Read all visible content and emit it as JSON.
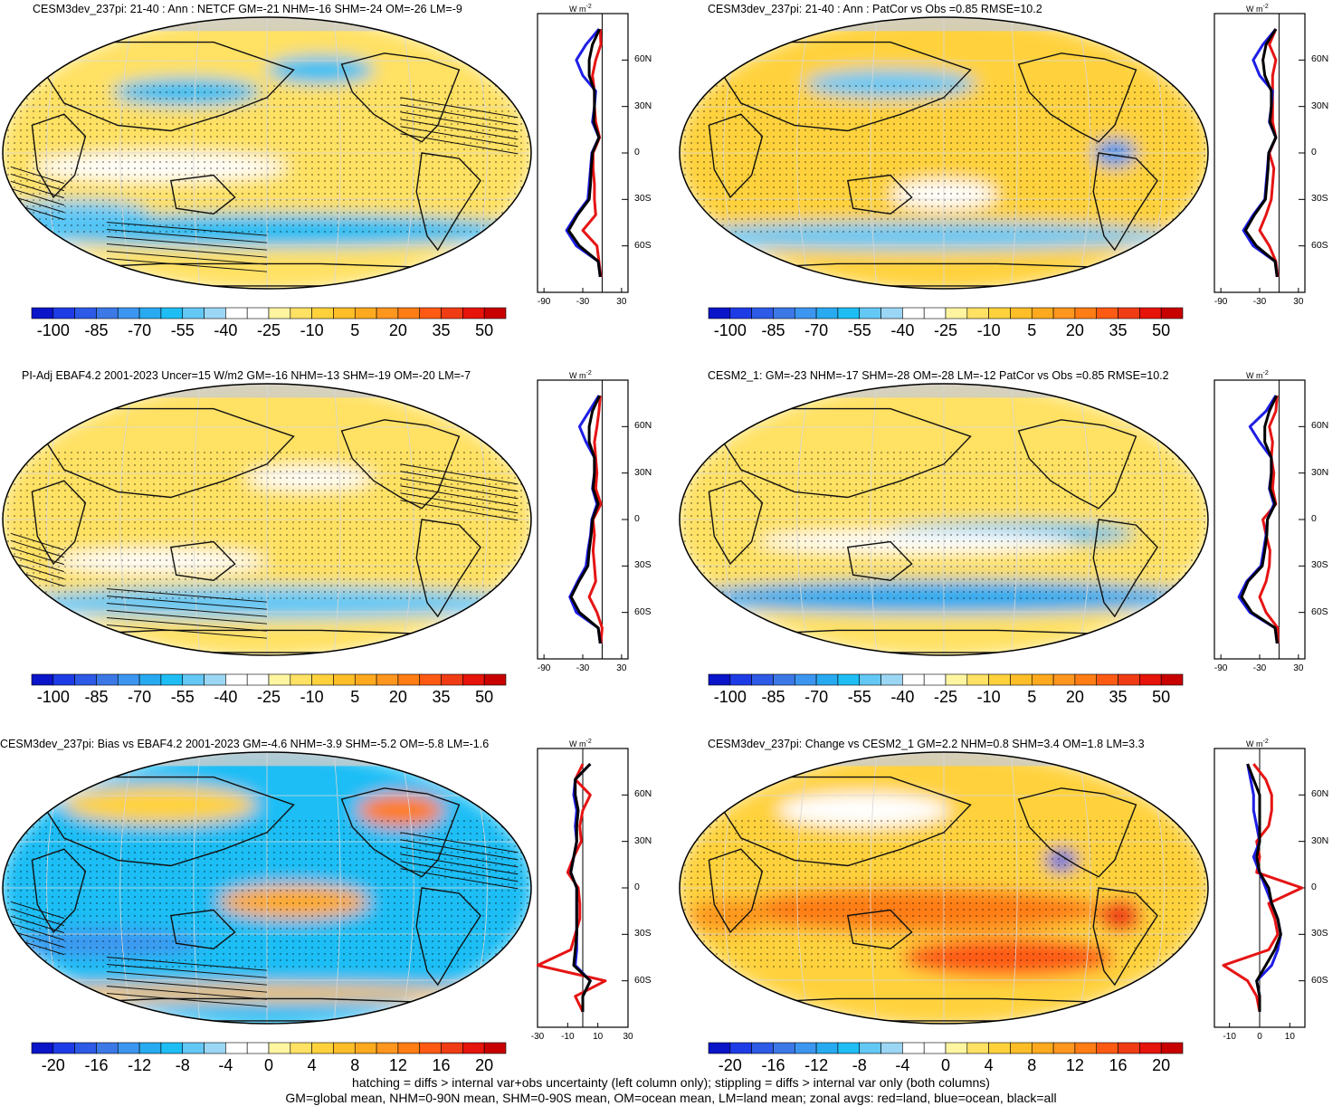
{
  "panels": [
    {
      "id": "p1",
      "title": "CESM3dev_237pi: 21-40 : Ann : NETCF GM=-21 NHM=-16 SHM=-24 OM=-26 LM=-9",
      "colorbar": "abs",
      "field": "mean_a",
      "hatching": true,
      "zonal_profile_key": "z1"
    },
    {
      "id": "p2",
      "title": "CESM3dev_237pi: 21-40 : Ann : PatCor vs Obs =0.85 RMSE=10.2",
      "colorbar": "abs",
      "field": "mean_b",
      "hatching": false,
      "zonal_profile_key": "z2"
    },
    {
      "id": "p3",
      "title": "PI-Adj EBAF4.2 2001-2023 Uncer=15 W/m2 GM=-16 NHM=-13 SHM=-19 OM=-20 LM=-7",
      "colorbar": "abs",
      "field": "mean_c",
      "hatching": true,
      "zonal_profile_key": "z3"
    },
    {
      "id": "p4",
      "title": "CESM2_1: GM=-23 NHM=-17 SHM=-28 OM=-28 LM=-12 PatCor vs Obs =0.85 RMSE=10.2",
      "colorbar": "abs",
      "field": "mean_d",
      "hatching": false,
      "zonal_profile_key": "z4"
    },
    {
      "id": "p5",
      "title": "CESM3dev_237pi: Bias vs EBAF4.2 2001-2023 GM=-4.6 NHM=-3.9 SHM=-5.2 OM=-5.8 LM=-1.6",
      "colorbar": "diff",
      "field": "bias",
      "hatching": true,
      "zonal_profile_key": "z5"
    },
    {
      "id": "p6",
      "title": "CESM3dev_237pi: Change vs CESM2_1 GM=2.2 NHM=0.8 SHM=3.4 OM=1.8 LM=3.3",
      "colorbar": "diff",
      "field": "change",
      "hatching": false,
      "zonal_profile_key": "z6"
    }
  ],
  "colorbars": {
    "abs": {
      "labels": [
        "-100",
        "-85",
        "-70",
        "-55",
        "-40",
        "-25",
        "-10",
        "5",
        "20",
        "35",
        "50"
      ],
      "colors": [
        "#0a14c8",
        "#1e3ce6",
        "#2d5ae6",
        "#3c78e6",
        "#3c96f0",
        "#28aaf0",
        "#1ebef5",
        "#64c8f5",
        "#9bd7f5",
        "#ffffff",
        "#ffffff",
        "#fff5a0",
        "#ffe164",
        "#ffd23c",
        "#ffbe28",
        "#ffaa1e",
        "#ff961e",
        "#ff7d14",
        "#ff5a14",
        "#f03c14",
        "#e6140a",
        "#c80000"
      ]
    },
    "diff": {
      "labels": [
        "-20",
        "-16",
        "-12",
        "-8",
        "-4",
        "0",
        "4",
        "8",
        "12",
        "16",
        "20"
      ],
      "colors": [
        "#0a14c8",
        "#1e3ce6",
        "#2d5ae6",
        "#3c78e6",
        "#3c96f0",
        "#28aaf0",
        "#1ebef5",
        "#64c8f5",
        "#9bd7f5",
        "#ffffff",
        "#ffffff",
        "#fff5a0",
        "#ffe164",
        "#ffd23c",
        "#ffbe28",
        "#ffaa1e",
        "#ff961e",
        "#ff7d14",
        "#ff5a14",
        "#f03c14",
        "#e6140a",
        "#c80000"
      ]
    }
  },
  "zonal_axes": {
    "unit": "W m",
    "unit_sup": "-2",
    "lat_ticks": [
      "60N",
      "30N",
      "0",
      "30S",
      "60S"
    ],
    "abs_xticks": [
      "-90",
      "-30",
      "30"
    ],
    "diff_left_xticks": [
      "-30",
      "-10",
      "10",
      "30"
    ],
    "diff_right_xticks": [
      "-10",
      "0",
      "10"
    ]
  },
  "legend_series": [
    {
      "name": "land",
      "color": "#e61414"
    },
    {
      "name": "ocean",
      "color": "#1e1ee6"
    },
    {
      "name": "all",
      "color": "#000000"
    }
  ],
  "footer": {
    "line1": "hatching = diffs > internal var+obs uncertainty (left column only); stippling = diffs > internal var only (both columns)",
    "line2": "GM=global mean, NHM=0-90N mean, SHM=0-90S mean, OM=ocean mean, LM=land mean; zonal avgs: red=land, blue=ocean, black=all"
  },
  "chart_data": [
    {
      "type": "heatmap",
      "title": "CESM3dev_237pi: 21-40 : Ann : NETCF GM=-21 NHM=-16 SHM=-24 OM=-26 LM=-9",
      "colorbar_ticks": [
        -100,
        -85,
        -70,
        -55,
        -40,
        -25,
        -10,
        5,
        20,
        35,
        50
      ]
    },
    {
      "type": "heatmap",
      "title": "CESM3dev_237pi: 21-40 : Ann : PatCor vs Obs =0.85 RMSE=10.2",
      "colorbar_ticks": [
        -100,
        -85,
        -70,
        -55,
        -40,
        -25,
        -10,
        5,
        20,
        35,
        50
      ]
    },
    {
      "type": "heatmap",
      "title": "PI-Adj EBAF4.2 2001-2023 Uncer=15 W/m2 GM=-16 NHM=-13 SHM=-19 OM=-20 LM=-7",
      "colorbar_ticks": [
        -100,
        -85,
        -70,
        -55,
        -40,
        -25,
        -10,
        5,
        20,
        35,
        50
      ]
    },
    {
      "type": "heatmap",
      "title": "CESM2_1: GM=-23 NHM=-17 SHM=-28 OM=-28 LM=-12 PatCor vs Obs =0.85 RMSE=10.2",
      "colorbar_ticks": [
        -100,
        -85,
        -70,
        -55,
        -40,
        -25,
        -10,
        5,
        20,
        35,
        50
      ]
    },
    {
      "type": "heatmap",
      "title": "CESM3dev_237pi: Bias vs EBAF4.2 2001-2023 GM=-4.6 NHM=-3.9 SHM=-5.2 OM=-5.8 LM=-1.6",
      "colorbar_ticks": [
        -20,
        -16,
        -12,
        -8,
        -4,
        0,
        4,
        8,
        12,
        16,
        20
      ]
    },
    {
      "type": "heatmap",
      "title": "CESM3dev_237pi: Change vs CESM2_1 GM=2.2 NHM=0.8 SHM=3.4 OM=1.8 LM=3.3",
      "colorbar_ticks": [
        -20,
        -16,
        -12,
        -8,
        -4,
        0,
        4,
        8,
        12,
        16,
        20
      ]
    },
    {
      "type": "line",
      "title": "",
      "lat": [
        80,
        70,
        60,
        50,
        40,
        30,
        20,
        10,
        0,
        -10,
        -20,
        -30,
        -40,
        -50,
        -60,
        -70,
        -80
      ],
      "zonal": {
        "z1": {
          "xlim": [
            -100,
            40
          ],
          "land": [
            -3,
            -2,
            -10,
            -15,
            -12,
            -12,
            -10,
            -4,
            -14,
            -14,
            -12,
            -12,
            -10,
            -30,
            -8,
            -5,
            -2
          ],
          "ocean": [
            -5,
            -25,
            -40,
            -30,
            -10,
            -12,
            -15,
            -5,
            -16,
            -18,
            -20,
            -22,
            -40,
            -55,
            -40,
            -6,
            -3
          ],
          "all": [
            -4,
            -15,
            -20,
            -20,
            -12,
            -12,
            -13,
            -5,
            -15,
            -17,
            -18,
            -20,
            -38,
            -52,
            -35,
            -6,
            -3
          ]
        },
        "z2": {
          "xlim": [
            -100,
            40
          ],
          "land": [
            -5,
            -15,
            -5,
            -10,
            -10,
            -10,
            -10,
            -5,
            -15,
            -8,
            -10,
            -12,
            -20,
            -30,
            -15,
            -5,
            -2
          ],
          "ocean": [
            -5,
            -25,
            -40,
            -30,
            -10,
            -12,
            -15,
            -5,
            -16,
            -18,
            -20,
            -22,
            -40,
            -55,
            -40,
            -6,
            -3
          ],
          "all": [
            -5,
            -20,
            -25,
            -22,
            -12,
            -12,
            -14,
            -5,
            -16,
            -17,
            -19,
            -21,
            -38,
            -52,
            -35,
            -6,
            -3
          ]
        },
        "z3": {
          "xlim": [
            -100,
            40
          ],
          "land": [
            -3,
            -5,
            -8,
            -12,
            -10,
            -8,
            -10,
            -2,
            -14,
            -12,
            -14,
            -12,
            -10,
            -20,
            -8,
            0,
            -2
          ],
          "ocean": [
            -5,
            -20,
            -35,
            -25,
            -12,
            -12,
            -15,
            -8,
            -16,
            -18,
            -22,
            -25,
            -38,
            -50,
            -40,
            -6,
            -3
          ],
          "all": [
            -4,
            -15,
            -20,
            -20,
            -12,
            -12,
            -14,
            -6,
            -15,
            -17,
            -20,
            -22,
            -36,
            -48,
            -35,
            -6,
            -3
          ]
        },
        "z4": {
          "xlim": [
            -100,
            40
          ],
          "land": [
            -3,
            -5,
            -15,
            -10,
            -12,
            -8,
            -10,
            -5,
            -25,
            -20,
            -14,
            -15,
            -20,
            -30,
            -20,
            -2,
            -2
          ],
          "ocean": [
            -5,
            -20,
            -45,
            -30,
            -12,
            -12,
            -15,
            -8,
            -18,
            -20,
            -24,
            -28,
            -50,
            -62,
            -45,
            -6,
            -3
          ],
          "all": [
            -4,
            -15,
            -22,
            -22,
            -12,
            -12,
            -14,
            -6,
            -18,
            -19,
            -22,
            -26,
            -48,
            -58,
            -42,
            -6,
            -3
          ]
        },
        "z5": {
          "xlim": [
            -30,
            30
          ],
          "land": [
            0,
            -5,
            5,
            0,
            -2,
            -1,
            -6,
            -10,
            -3,
            -2,
            -2,
            -5,
            -8,
            -30,
            15,
            -5,
            0
          ],
          "ocean": [
            5,
            -5,
            -6,
            -4,
            -5,
            -4,
            -6,
            -8,
            -4,
            -4,
            -4,
            -4,
            -4,
            -5,
            5,
            0,
            0
          ],
          "all": [
            5,
            -5,
            -5,
            -3,
            -4,
            -4,
            -6,
            -8,
            -4,
            -4,
            -4,
            -4,
            -5,
            -6,
            5,
            0,
            0
          ],
          "xticks": [
            -30,
            -10,
            10,
            30
          ]
        },
        "z6": {
          "xlim": [
            -15,
            15
          ],
          "land": [
            -2,
            2,
            4,
            4,
            3,
            -1,
            0,
            -1,
            14,
            3,
            5,
            6,
            3,
            -12,
            -4,
            -1,
            0
          ],
          "ocean": [
            -4,
            -3,
            -2,
            -2,
            -1,
            0,
            -2,
            0,
            2,
            4,
            6,
            7,
            6,
            4,
            -1,
            0,
            0
          ],
          "all": [
            -4,
            -2,
            0,
            0,
            0,
            0,
            -1,
            0,
            3,
            4,
            6,
            7,
            5,
            2,
            -1,
            0,
            0
          ],
          "xticks": [
            -10,
            0,
            10
          ]
        }
      }
    }
  ]
}
